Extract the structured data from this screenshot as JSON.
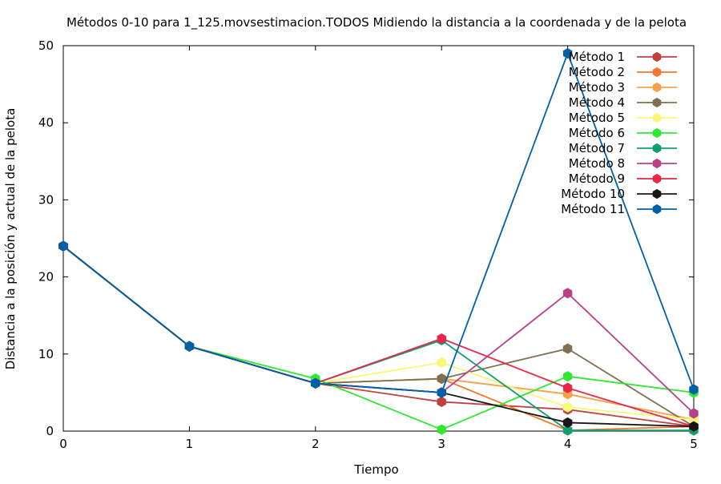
{
  "chart_data": {
    "type": "line",
    "title": "Métodos 0-10 para 1_125.movsestimacion.TODOS Midiendo la distancia a la coordenada y de la pelota",
    "xlabel": "Tiempo",
    "ylabel": "Distancia a la posición y actual de la pelota",
    "xlim": [
      0,
      5
    ],
    "ylim": [
      0,
      50
    ],
    "x_ticks": [
      "0",
      "1",
      "2",
      "3",
      "4",
      "5"
    ],
    "y_ticks": [
      "0",
      "10",
      "20",
      "30",
      "40",
      "50"
    ],
    "grid": false,
    "legend_position": "top-right",
    "x": [
      0,
      1,
      2,
      3,
      4,
      5
    ],
    "series": [
      {
        "name": "Método 1",
        "color": "#c0403e",
        "values": [
          24,
          11,
          6.2,
          3.8,
          2.8,
          0.6
        ]
      },
      {
        "name": "Método 2",
        "color": "#f07830",
        "values": [
          24,
          11,
          6.2,
          6.8,
          0.1,
          0.6
        ]
      },
      {
        "name": "Método 3",
        "color": "#f8a048",
        "values": [
          24,
          11,
          6.2,
          6.8,
          4.8,
          1.5
        ]
      },
      {
        "name": "Método 4",
        "color": "#807050",
        "values": [
          24,
          11,
          6.2,
          6.8,
          10.7,
          0.6
        ]
      },
      {
        "name": "Método 5",
        "color": "#f8f878",
        "values": [
          24,
          11,
          6.2,
          8.9,
          3.1,
          1.5
        ]
      },
      {
        "name": "Método 6",
        "color": "#30e830",
        "values": [
          24,
          11,
          6.8,
          0.2,
          7.1,
          5.0
        ]
      },
      {
        "name": "Método 7",
        "color": "#10a070",
        "values": [
          24,
          11,
          6.2,
          11.8,
          0.1,
          0.1
        ]
      },
      {
        "name": "Método 8",
        "color": "#b84088",
        "values": [
          24,
          11,
          6.2,
          5.0,
          17.9,
          2.3
        ]
      },
      {
        "name": "Método 9",
        "color": "#e82848",
        "values": [
          24,
          11,
          6.2,
          12.0,
          5.6,
          0.6
        ]
      },
      {
        "name": "Método 10",
        "color": "#181818",
        "values": [
          24,
          11,
          6.2,
          5.0,
          1.1,
          0.6
        ]
      },
      {
        "name": "Método 11",
        "color": "#0060a8",
        "values": [
          24,
          11,
          6.2,
          5.0,
          49.0,
          5.4
        ]
      }
    ]
  }
}
